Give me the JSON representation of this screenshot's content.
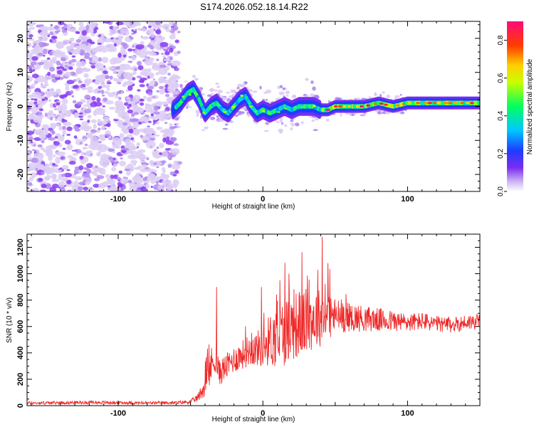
{
  "title": "S174.2026.052.18.14.R22",
  "colors": {
    "snr_line": "#ee2a2a",
    "spectrogram_low": "#9b3bf0",
    "axis": "#000000"
  },
  "chart_data": [
    {
      "type": "heatmap",
      "name": "spectrogram",
      "xlabel": "Height of straight line (km)",
      "ylabel": "Frequency (Hz)",
      "xlim": [
        -163,
        150
      ],
      "ylim": [
        -25,
        25
      ],
      "xticks": [
        -100,
        0,
        100
      ],
      "yticks": [
        -20,
        -10,
        0,
        10,
        20
      ],
      "noise_region_x": [
        -163,
        -60
      ],
      "signal_track": {
        "x": [
          -62,
          -57,
          -52,
          -48,
          -44,
          -40,
          -36,
          -32,
          -28,
          -24,
          -20,
          -16,
          -12,
          -8,
          -4,
          0,
          5,
          10,
          15,
          20,
          25,
          30,
          35,
          40,
          45,
          50,
          60,
          70,
          80,
          90,
          100,
          110,
          120,
          130,
          140,
          150
        ],
        "freq_hz": [
          -1,
          1,
          4,
          5,
          2,
          -2,
          0,
          1,
          -1,
          -2,
          0,
          2,
          3,
          0,
          -2,
          -1,
          -2,
          -1,
          0,
          -1,
          0,
          0,
          0,
          -1,
          -1,
          0,
          0,
          0,
          1,
          0,
          1,
          1,
          1,
          1,
          1,
          1
        ]
      },
      "colorbar": {
        "label": "Normalized spectral amplitude",
        "range": [
          0.0,
          0.9
        ],
        "ticks": [
          "0.0",
          "0.2",
          "0.4",
          "0.6",
          "0.8"
        ]
      }
    },
    {
      "type": "line",
      "name": "snr",
      "xlabel": "Height of straight line (km)",
      "ylabel": "SNR (10 * v/v)",
      "xlim": [
        -163,
        150
      ],
      "ylim": [
        0,
        1300
      ],
      "xticks": [
        -100,
        0,
        100
      ],
      "yticks": [
        0,
        200,
        400,
        600,
        800,
        1000,
        1200
      ],
      "series": [
        {
          "name": "SNR",
          "envelope_x": [
            -163,
            -140,
            -120,
            -100,
            -80,
            -60,
            -50,
            -45,
            -40,
            -36,
            -33,
            -30,
            -25,
            -20,
            -15,
            -10,
            -5,
            0,
            5,
            10,
            15,
            20,
            25,
            30,
            35,
            40,
            45,
            50,
            60,
            70,
            80,
            90,
            100,
            110,
            120,
            130,
            140,
            150
          ],
          "envelope_mean": [
            20,
            22,
            25,
            22,
            20,
            22,
            30,
            60,
            150,
            300,
            350,
            250,
            300,
            350,
            380,
            420,
            430,
            450,
            500,
            520,
            560,
            600,
            620,
            640,
            660,
            670,
            680,
            680,
            670,
            660,
            650,
            640,
            630,
            640,
            620,
            610,
            630,
            640
          ],
          "envelope_noise": [
            12,
            12,
            12,
            12,
            12,
            12,
            15,
            30,
            80,
            150,
            100,
            100,
            100,
            100,
            110,
            120,
            130,
            160,
            200,
            250,
            260,
            260,
            260,
            250,
            240,
            220,
            200,
            140,
            110,
            100,
            90,
            80,
            70,
            70,
            60,
            60,
            60,
            60
          ],
          "spikes": [
            {
              "x": -32,
              "y": 900
            },
            {
              "x": 41,
              "y": 1280
            },
            {
              "x": 18,
              "y": 1000
            },
            {
              "x": 38,
              "y": 1030
            },
            {
              "x": 45,
              "y": 1080
            },
            {
              "x": -1,
              "y": 900
            }
          ]
        }
      ]
    }
  ]
}
